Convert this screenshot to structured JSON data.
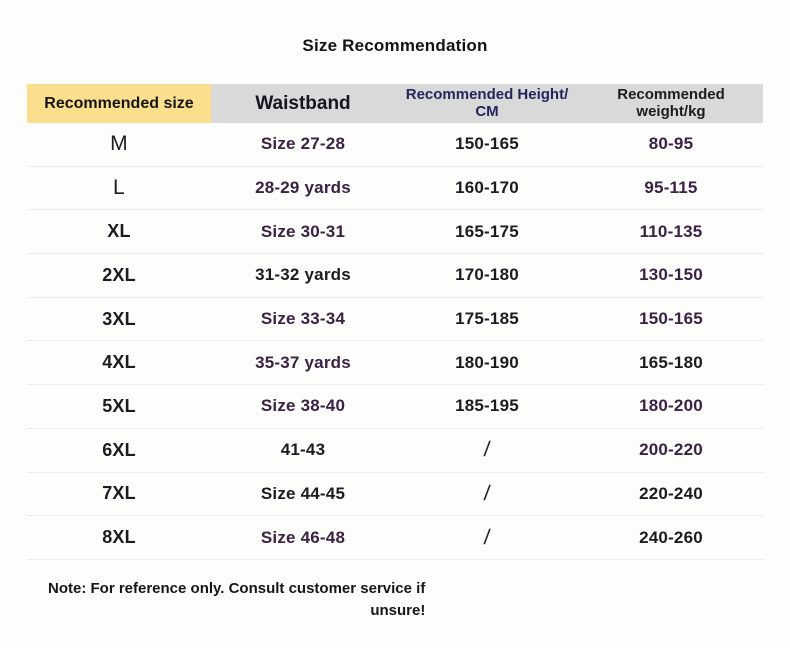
{
  "chart_data": {
    "type": "table",
    "title": "Size Recommendation",
    "columns": [
      "Recommended size",
      "Waistband",
      "Recommended Height/CM",
      "Recommended weight/kg"
    ],
    "rows": [
      [
        "M",
        "Size 27-28",
        "150-165",
        "80-95"
      ],
      [
        "L",
        "28-29 yards",
        "160-170",
        "95-115"
      ],
      [
        "XL",
        "Size 30-31",
        "165-175",
        "110-135"
      ],
      [
        "2XL",
        "31-32 yards",
        "170-180",
        "130-150"
      ],
      [
        "3XL",
        "Size 33-34",
        "175-185",
        "150-165"
      ],
      [
        "4XL",
        "35-37 yards",
        "180-190",
        "165-180"
      ],
      [
        "5XL",
        "Size 38-40",
        "185-195",
        "180-200"
      ],
      [
        "6XL",
        "41-43",
        "/",
        "200-220"
      ],
      [
        "7XL",
        "Size 44-45",
        "/",
        "220-240"
      ],
      [
        "8XL",
        "Size 46-48",
        "/",
        "240-260"
      ]
    ],
    "note": "Note: For reference only. Consult customer service if\nunsure!"
  },
  "header_labels": [
    "Recommended size",
    "Waistband",
    "Recommended Height/\nCM",
    "Recommended\nweight/kg"
  ],
  "cell_tones": [
    [
      "black",
      "purple",
      "black",
      "purple"
    ],
    [
      "black",
      "purple",
      "black",
      "purple"
    ],
    [
      "black",
      "purple",
      "black",
      "purple"
    ],
    [
      "black",
      "black",
      "black",
      "purple"
    ],
    [
      "black",
      "purple",
      "black",
      "purple"
    ],
    [
      "black",
      "purple",
      "black",
      "black"
    ],
    [
      "black",
      "purple",
      "black",
      "purple"
    ],
    [
      "black",
      "black",
      "black",
      "purple"
    ],
    [
      "black",
      "black",
      "black",
      "black"
    ],
    [
      "black",
      "purple",
      "black",
      "black"
    ]
  ],
  "colors": {
    "header_highlight": "#fbdf8d",
    "header_gray": "#d9d9d9",
    "navy_text": "#23255c",
    "purple_text": "#3a2145",
    "black_text": "#1d1b22",
    "row_divider": "#ececec"
  }
}
